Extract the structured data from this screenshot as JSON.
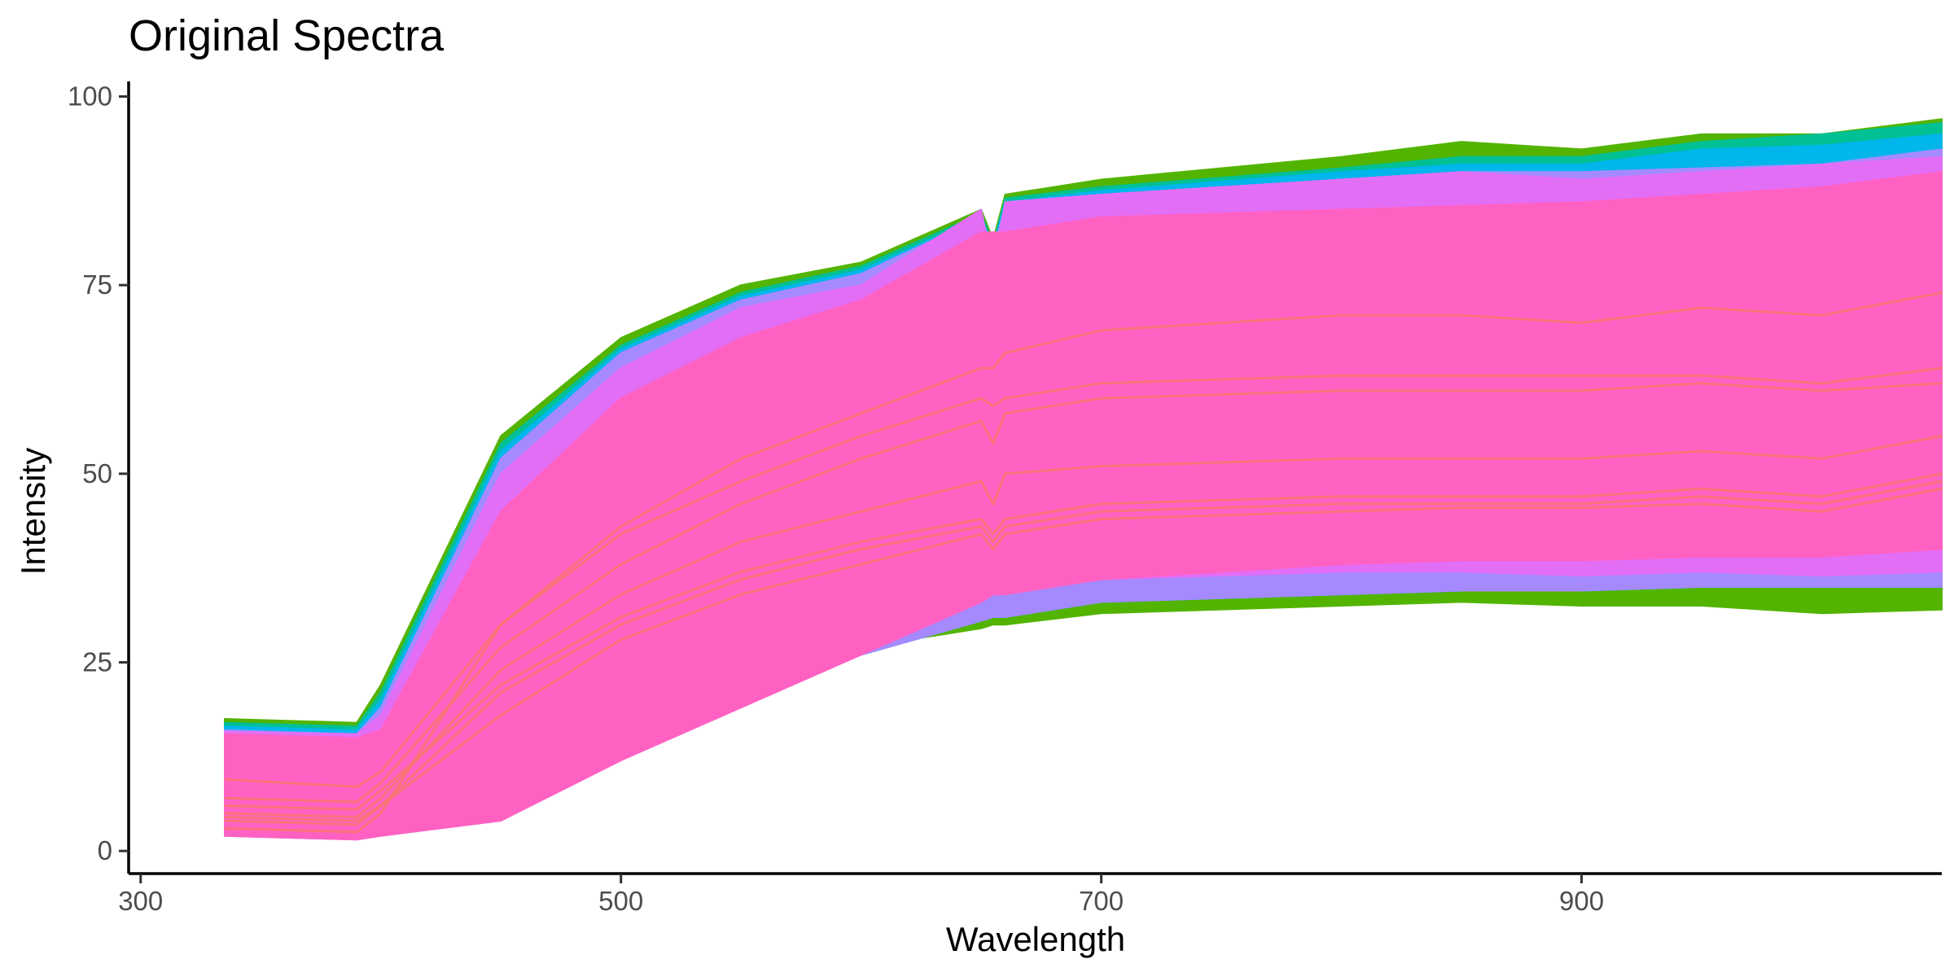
{
  "chart_data": {
    "type": "area",
    "title": "Original Spectra",
    "xlabel": "Wavelength",
    "ylabel": "Intensity",
    "xlim": [
      295,
      1050
    ],
    "ylim": [
      -3,
      102
    ],
    "xticks": [
      300,
      500,
      700,
      900
    ],
    "yticks": [
      0,
      25,
      50,
      75,
      100
    ],
    "grid": false,
    "legend": "none",
    "x": [
      335,
      390,
      400,
      450,
      500,
      550,
      600,
      650,
      655,
      660,
      700,
      800,
      850,
      900,
      950,
      1000,
      1050
    ],
    "series": [
      {
        "color": "#53B400",
        "upper": [
          17.5,
          17,
          22,
          55,
          68,
          75,
          78,
          85,
          81,
          87,
          89,
          92,
          94,
          93,
          95,
          95,
          97
        ],
        "lower": [
          15.5,
          15.5,
          5,
          5,
          15,
          21,
          27,
          29.5,
          30,
          30,
          31.5,
          32.5,
          33,
          32.5,
          32.5,
          31.5,
          32
        ]
      },
      {
        "color": "#00C094",
        "upper": [
          17,
          16.5,
          21,
          54,
          67,
          74,
          77.5,
          84.5,
          80.5,
          86.5,
          88,
          90.5,
          92,
          92,
          94,
          95,
          96.5
        ],
        "lower": [
          3,
          2.5,
          4,
          5,
          14,
          20.5,
          26,
          30.5,
          31,
          31,
          33,
          34,
          34.5,
          34.5,
          35,
          35,
          35
        ]
      },
      {
        "color": "#00B6EB",
        "upper": [
          16.5,
          16,
          20,
          53,
          66.5,
          73.5,
          77,
          84,
          80,
          86,
          87.5,
          90,
          91,
          91,
          93,
          93.5,
          95
        ]
      },
      {
        "color": "#A58AFF",
        "upper": [
          16,
          15.5,
          19,
          52,
          66,
          73,
          76.5,
          84,
          79.5,
          85.5,
          87,
          89,
          90,
          90,
          90.5,
          91,
          93
        ]
      },
      {
        "color": "#E36EF6",
        "upper": [
          15.8,
          15.5,
          18,
          50,
          64,
          72,
          75,
          85,
          77,
          86,
          87,
          89,
          90,
          89,
          90,
          91,
          92
        ],
        "lower": [
          2,
          1.5,
          3,
          5,
          13,
          20,
          26,
          33,
          35,
          35,
          36,
          37,
          37,
          36.5,
          37,
          36.5,
          37
        ]
      },
      {
        "color": "#FF61C3",
        "upper": [
          15.5,
          15,
          16,
          45,
          60,
          68,
          73,
          82,
          82,
          82,
          84,
          85,
          85.5,
          86,
          87,
          88,
          90
        ],
        "lower": [
          2,
          1.5,
          2,
          4,
          12,
          19,
          26,
          33,
          34,
          34,
          36,
          38,
          38.5,
          38.5,
          39,
          39,
          40
        ]
      }
    ],
    "lines": [
      {
        "color": "#F8766D",
        "values": [
          9.5,
          8.5,
          10.5,
          30,
          42,
          49,
          55,
          60,
          59,
          60,
          62,
          63,
          63,
          63,
          63,
          62,
          64
        ]
      },
      {
        "color": "#F8766D",
        "values": [
          7,
          6.5,
          9,
          27,
          38,
          46,
          52,
          57,
          54,
          58,
          60,
          61,
          61,
          61,
          62,
          61,
          62
        ]
      },
      {
        "color": "#F8766D",
        "values": [
          6,
          5.5,
          8,
          22,
          31,
          37,
          41,
          44,
          42,
          44,
          46,
          47,
          47,
          47,
          48,
          47,
          50
        ]
      },
      {
        "color": "#F8766D",
        "values": [
          5,
          4.5,
          7,
          24,
          34,
          41,
          45,
          49,
          46,
          50,
          51,
          52,
          52,
          52,
          53,
          52,
          55
        ]
      },
      {
        "color": "#F8766D",
        "values": [
          4,
          3.5,
          6,
          18,
          28,
          34,
          38,
          42,
          40,
          42,
          44,
          45,
          45.5,
          45.5,
          46,
          45,
          48
        ]
      },
      {
        "color": "#F8766D",
        "values": [
          3,
          2.5,
          5,
          30,
          43,
          52,
          58,
          64,
          64,
          66,
          69,
          71,
          71,
          70,
          72,
          71,
          74
        ]
      },
      {
        "color": "#F8766D",
        "values": [
          4.5,
          4,
          6,
          21,
          30,
          36,
          40,
          43,
          41,
          43,
          45,
          46,
          46,
          46,
          47,
          46,
          49
        ]
      }
    ]
  }
}
